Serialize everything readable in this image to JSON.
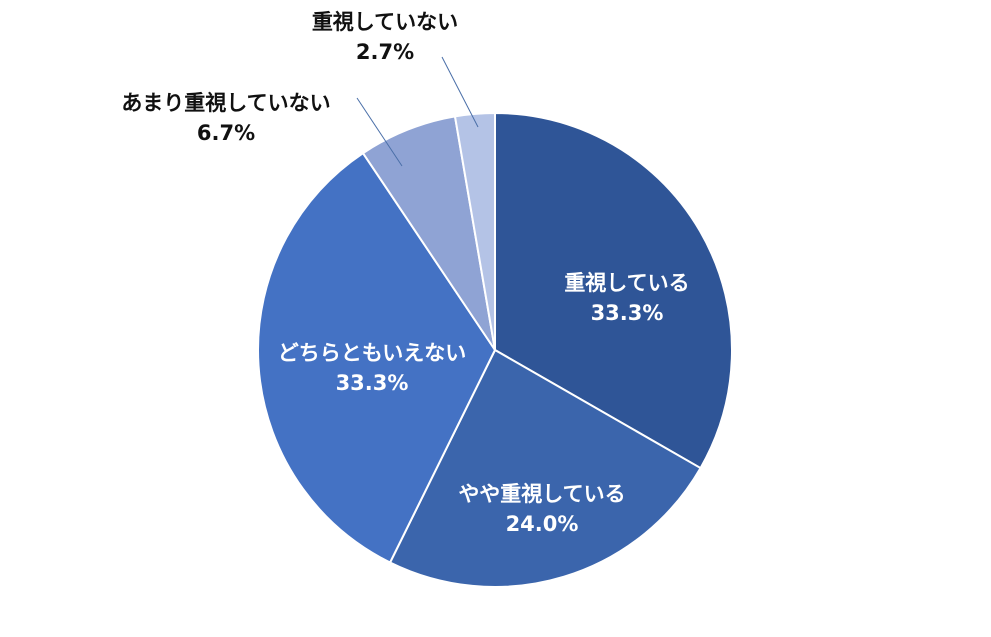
{
  "chart_data": {
    "type": "pie",
    "title": "",
    "start_angle_deg": 0,
    "direction": "clockwise",
    "slices": [
      {
        "name": "重視している",
        "value": 33.3,
        "display": "33.3%",
        "color": "#2f5597",
        "label_position": "inside"
      },
      {
        "name": "やや重視している",
        "value": 24.0,
        "display": "24.0%",
        "color": "#3b65ac",
        "label_position": "inside"
      },
      {
        "name": "どちらともいえない",
        "value": 33.3,
        "display": "33.3%",
        "color": "#4472c4",
        "label_position": "inside"
      },
      {
        "name": "あまり重視していない",
        "value": 6.7,
        "display": "6.7%",
        "color": "#8fa3d4",
        "label_position": "outside"
      },
      {
        "name": "重視していない",
        "value": 2.7,
        "display": "2.7%",
        "color": "#b4c3e6",
        "label_position": "outside"
      }
    ],
    "legend": "none"
  }
}
